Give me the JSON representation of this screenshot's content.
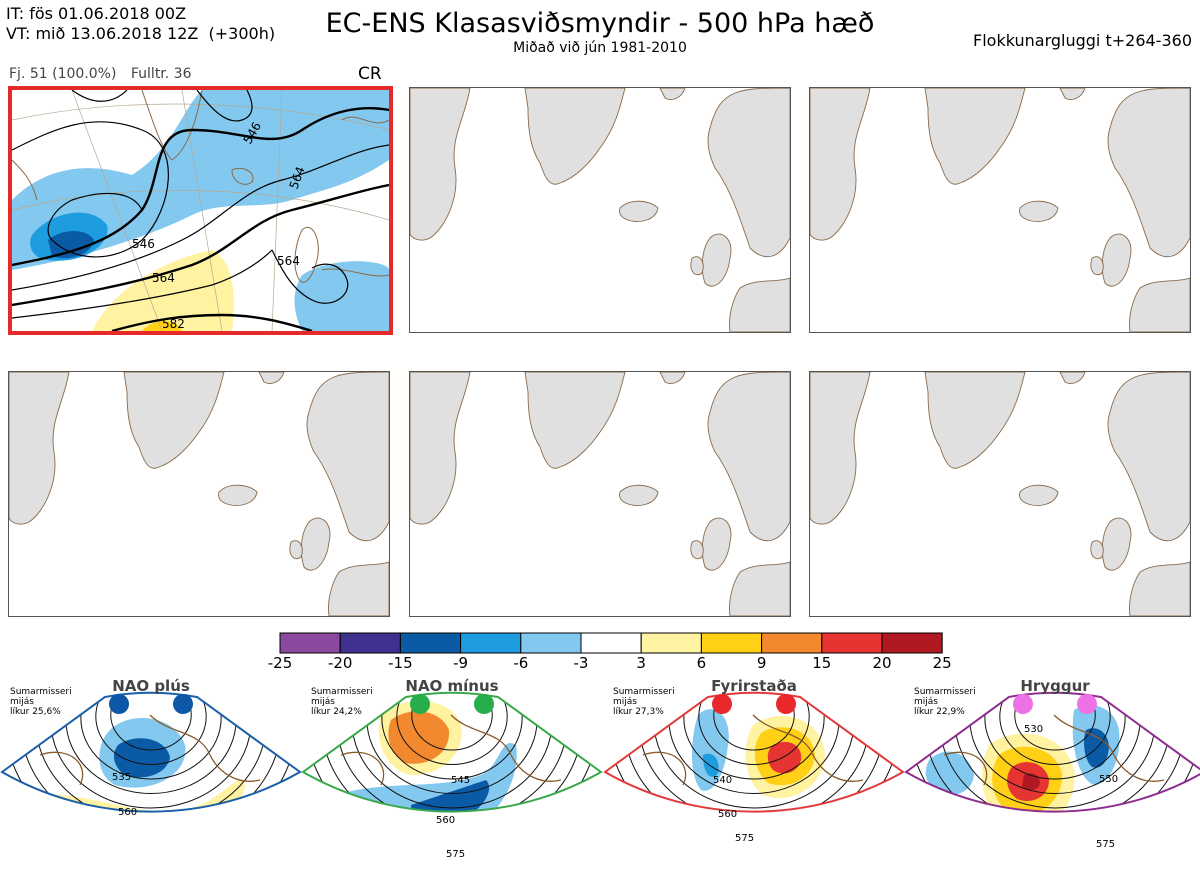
{
  "header": {
    "it_line": "IT: fös 01.06.2018 00Z",
    "vt_line": "VT: mið 13.06.2018 12Z  (+300h)",
    "title": "EC-ENS Klasasviðsmyndir - 500 hPa hæð",
    "subtitle": "Miðað við jún 1981-2010",
    "window": "Flokkunargluggi t+264-360"
  },
  "panel_meta": {
    "count": "Fj. 51 (100.0%)",
    "representative": "Fulltr. 36",
    "code": "CR"
  },
  "main_contours": [
    "546",
    "546",
    "564",
    "564",
    "564",
    "582"
  ],
  "colorbar": {
    "ticks": [
      "-25",
      "-20",
      "-15",
      "-9",
      "-6",
      "-3",
      "3",
      "6",
      "9",
      "15",
      "20",
      "25"
    ],
    "colors": [
      "#8b4a9f",
      "#40318f",
      "#0b5aa5",
      "#1d9ddf",
      "#83c8ee",
      "#ffffff",
      "#fff2a0",
      "#ffd016",
      "#f2892e",
      "#e53432",
      "#b01822"
    ]
  },
  "clusters": [
    {
      "name": "NAO plús",
      "line1": "Sumarmisseri",
      "line2": "mijás",
      "line3": "líkur 25,6%",
      "border": "#1a5fa8",
      "dot": "#0e57a6",
      "labels": [
        "535",
        "560"
      ]
    },
    {
      "name": "NAO mínus",
      "line1": "Sumarmisseri",
      "line2": "mijás",
      "line3": "líkur 24,2%",
      "border": "#3aa84a",
      "dot": "#27ad4a",
      "labels": [
        "545",
        "560",
        "575"
      ]
    },
    {
      "name": "Fyrirstaða",
      "line1": "Sumarmisseri",
      "line2": "mijás",
      "line3": "líkur 27,3%",
      "border": "#e23a3a",
      "dot": "#e8282a",
      "labels": [
        "540",
        "560",
        "575"
      ]
    },
    {
      "name": "Hryggur",
      "line1": "Sumarmisseri",
      "line2": "mijás",
      "line3": "líkur 22,9%",
      "border": "#8e2d8e",
      "dot": "#ef71e6",
      "labels": [
        "530",
        "550",
        "575"
      ]
    }
  ]
}
